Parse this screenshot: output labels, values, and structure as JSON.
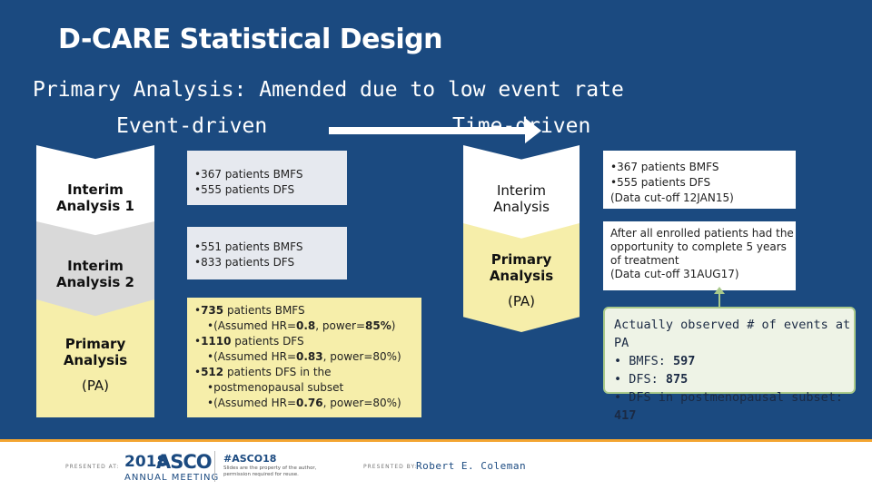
{
  "title": "D-CARE Statistical Design",
  "primary_analysis_line": "Primary Analysis:  Amended due to low event rate",
  "event_driven": "Event-driven",
  "time_driven": "Time-driven",
  "left_chevrons": [
    {
      "line1": "Interim",
      "line2": "Analysis 1"
    },
    {
      "line1": "Interim",
      "line2": "Analysis 2"
    },
    {
      "line1": "Primary",
      "line2": "Analysis",
      "line3": "(PA)"
    }
  ],
  "left_boxes": {
    "box1": [
      "367 patients BMFS",
      "555 patients DFS"
    ],
    "box2": [
      "551 patients BMFS",
      "833 patients DFS"
    ],
    "box3": {
      "item1_bold": "735",
      "item1_text": " patients BMFS",
      "item1_sub_a": "(Assumed HR=",
      "item1_hr": "0.8",
      "item1_sub_b": ", power=",
      "item1_power": "85%",
      "item1_sub_c": ")",
      "item2_bold": "1110",
      "item2_text": " patients DFS",
      "item2_sub_a": "(Assumed HR=",
      "item2_hr": "0.83",
      "item2_sub_b": ", power=80%)",
      "item3_bold": "512",
      "item3_text": " patients DFS in the",
      "item3_line2": "postmenopausal subset",
      "item3_sub_a": "(Assumed HR=",
      "item3_hr": "0.76",
      "item3_sub_b": ", power=80%)"
    }
  },
  "right_chevrons": [
    {
      "line1": "Interim",
      "line2": "Analysis"
    },
    {
      "line1": "Primary",
      "line2": "Analysis",
      "line3": "(PA)"
    }
  ],
  "right_boxes": {
    "box1": {
      "item1": "367 patients BMFS",
      "item2": "555 patients DFS",
      "note": "(Data cut-off 12JAN15)"
    },
    "box2": {
      "text": "After all enrolled patients had the opportunity to complete 5 years of treatment",
      "note": "(Data cut-off 31AUG17)"
    }
  },
  "actual_events": {
    "heading": "Actually observed # of events at PA",
    "bmfs_label": "BMFS: ",
    "bmfs_value": "597",
    "dfs_label": "DFS:  ",
    "dfs_value": "875",
    "post_label": "DFS in postmenopausal subset: ",
    "post_value": "417"
  },
  "footer": {
    "presented_at": "PRESENTED AT:",
    "year": "2018",
    "asco": "ASCO",
    "annual_meeting": "ANNUAL MEETING",
    "hashtag": "#ASCO18",
    "slide_note": "Slides are the property of the author, permission required for reuse.",
    "presented_by": "PRESENTED BY:",
    "presenter": "Robert E. Coleman"
  },
  "colors": {
    "background": "#1b4a80",
    "highlight": "#f6eeaa",
    "accent": "#f3a531"
  }
}
